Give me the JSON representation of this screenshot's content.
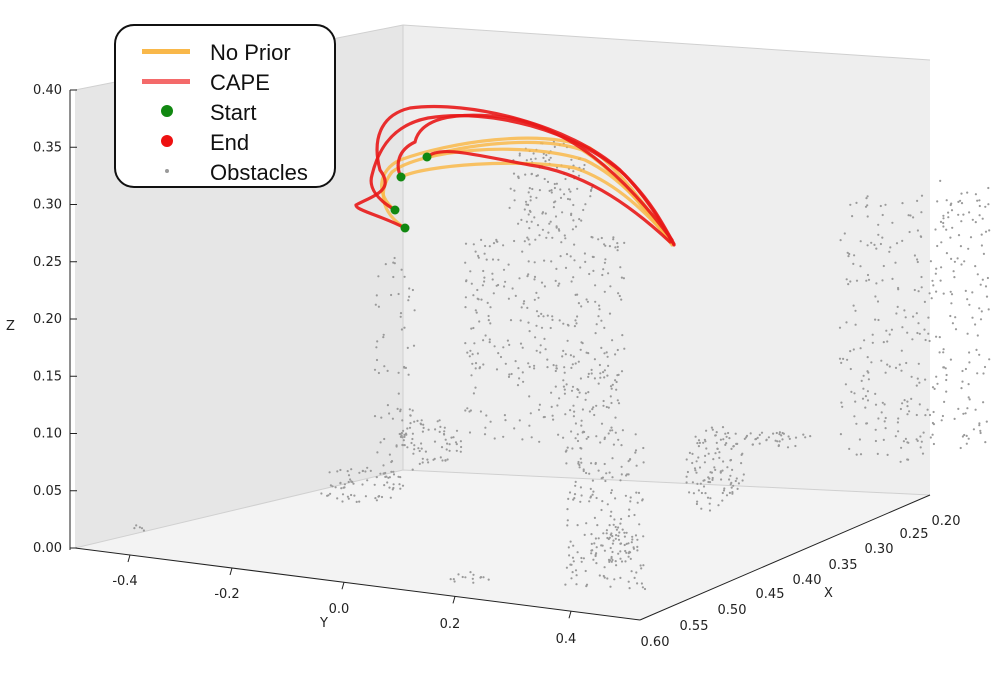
{
  "chart_data": {
    "type": "line3d",
    "legend": [
      {
        "label": "No Prior",
        "kind": "line",
        "color": "#f9b84a"
      },
      {
        "label": "CAPE",
        "kind": "line",
        "color": "#f46a6a"
      },
      {
        "label": "Start",
        "kind": "marker",
        "color": "#118811"
      },
      {
        "label": "End",
        "kind": "marker",
        "color": "#ee1111"
      },
      {
        "label": "Obstacles",
        "kind": "point",
        "color": "#9a9a9a"
      }
    ],
    "axes": {
      "x": {
        "label": "X",
        "ticks": [
          "0.20",
          "0.25",
          "0.30",
          "0.35",
          "0.40",
          "0.45",
          "0.50",
          "0.55",
          "0.60"
        ]
      },
      "y": {
        "label": "Y",
        "ticks": [
          "-0.4",
          "-0.2",
          "0.0",
          "0.2",
          "0.4"
        ]
      },
      "z": {
        "label": "Z",
        "ticks": [
          "0.00",
          "0.05",
          "0.10",
          "0.15",
          "0.20",
          "0.25",
          "0.30",
          "0.35",
          "0.40"
        ]
      }
    },
    "colors": {
      "no_prior": "#f9b84a",
      "cape": "#e81818",
      "start": "#118811",
      "end": "#ee1111",
      "obstacles": "#9a9a9a",
      "pane": "#f0f0f0"
    }
  }
}
